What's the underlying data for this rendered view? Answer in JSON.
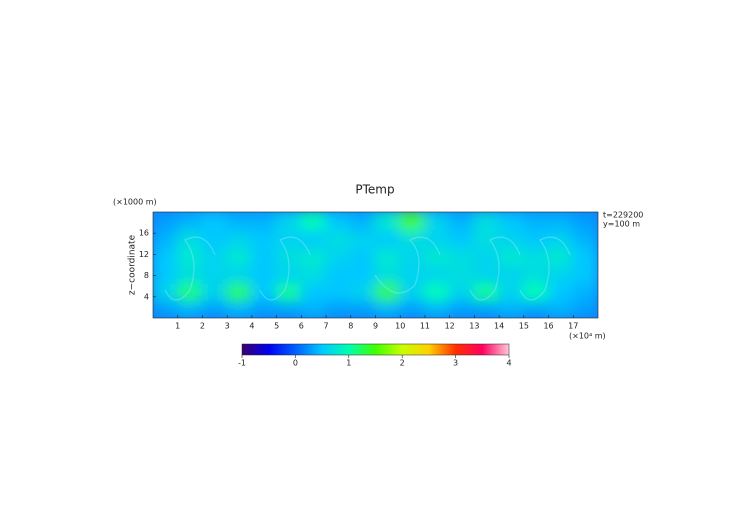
{
  "chart_data": {
    "type": "heatmap",
    "title": "PTemp",
    "y_unit_label": "(×1000 m)",
    "ylabel": "z−coordinate",
    "x_unit_label": "(×10⁴ m)",
    "annotations": [
      "t=229200",
      "y=100 m"
    ],
    "x": [
      0.5,
      1.5,
      2.5,
      3.5,
      4.5,
      5.5,
      6.5,
      7.5,
      8.5,
      9.5,
      10.5,
      11.5,
      12.5,
      13.5,
      14.5,
      15.5,
      16.5,
      17.5
    ],
    "y": [
      1.67,
      5,
      8.33,
      11.67,
      15,
      18.33
    ],
    "z": [
      [
        0.3,
        0.4,
        0.3,
        0.4,
        0.3,
        0.3,
        0.4,
        0.3,
        0.3,
        0.4,
        0.3,
        0.4,
        0.3,
        0.3,
        0.4,
        0.3,
        0.4,
        0.3
      ],
      [
        0.6,
        1.2,
        0.6,
        1.3,
        0.5,
        1.1,
        0.5,
        0.5,
        0.6,
        1.4,
        0.6,
        1.0,
        0.6,
        1.1,
        0.6,
        1.0,
        0.5,
        0.4
      ],
      [
        0.5,
        0.7,
        0.6,
        0.6,
        0.5,
        0.6,
        0.7,
        0.5,
        0.5,
        0.7,
        0.6,
        0.6,
        0.7,
        0.6,
        0.6,
        0.7,
        0.6,
        0.5
      ],
      [
        0.5,
        0.8,
        0.6,
        0.8,
        0.5,
        0.7,
        0.8,
        0.6,
        0.5,
        0.8,
        0.6,
        0.8,
        0.7,
        0.6,
        0.8,
        0.7,
        0.8,
        0.5
      ],
      [
        0.4,
        0.7,
        0.5,
        0.6,
        0.5,
        0.6,
        0.5,
        0.7,
        0.6,
        0.5,
        0.7,
        0.6,
        0.5,
        0.7,
        0.6,
        0.5,
        0.6,
        0.4
      ],
      [
        0.3,
        0.4,
        0.5,
        0.4,
        0.4,
        0.6,
        1.0,
        0.5,
        0.4,
        0.8,
        1.5,
        0.6,
        0.4,
        0.7,
        0.5,
        0.4,
        0.4,
        0.3
      ]
    ],
    "xlim": [
      0,
      18
    ],
    "xticks": [
      1,
      2,
      3,
      4,
      5,
      6,
      7,
      8,
      9,
      10,
      11,
      12,
      13,
      14,
      15,
      16,
      17
    ],
    "ylim": [
      0,
      20
    ],
    "yticks": [
      4,
      8,
      12,
      16
    ],
    "clim": [
      -1,
      4
    ],
    "cticks": [
      -1,
      0,
      1,
      2,
      3,
      4
    ],
    "colors": [
      "#3c0070",
      "#0000f0",
      "#0060ff",
      "#00c8ff",
      "#00ffb0",
      "#40ff00",
      "#c8ff00",
      "#ffd000",
      "#ff3000",
      "#ff0060",
      "#ffc8d8"
    ]
  }
}
